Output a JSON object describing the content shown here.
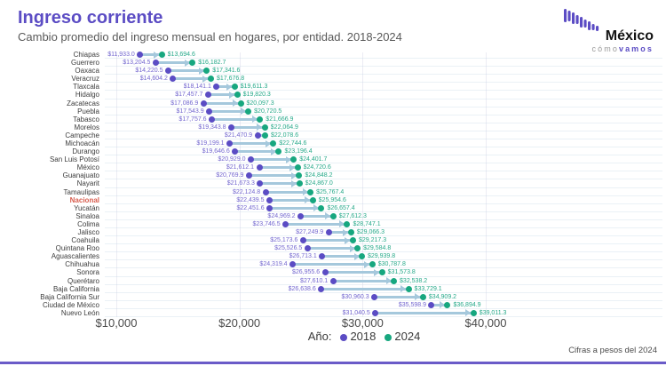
{
  "header": {
    "title": "Ingreso corriente",
    "subtitle": "Cambio promedio del ingreso mensual en hogares, por entidad. 2018-2024"
  },
  "logo": {
    "name": "México",
    "sub1": "cómo",
    "sub2": "vamos",
    "icon": "bars-logo-icon"
  },
  "colors": {
    "purple_2018": "#5b4cc4",
    "green_2024": "#17a77f",
    "connector_line": "#a5c8dc",
    "national_red": "#d85c4d",
    "title_purple": "#5b4cc4"
  },
  "legend": {
    "label": "Año:",
    "items": [
      {
        "label": "2018",
        "color": "#5b4cc4"
      },
      {
        "label": "2024",
        "color": "#17a77f"
      }
    ]
  },
  "footer": {
    "note": "Cifras a pesos del 2024"
  },
  "chart_data": {
    "type": "scatter",
    "variant": "dumbbell",
    "title": "Ingreso corriente",
    "subtitle": "Cambio promedio del ingreso mensual en hogares, por entidad. 2018-2024",
    "xlabel": "",
    "ylabel": "",
    "unit": "MXN pesos del 2024",
    "legend_position": "bottom",
    "highlight_category": "Nacional",
    "x_ticks": [
      10000,
      20000,
      30000,
      40000
    ],
    "x_tick_labels": [
      "$10,000",
      "$20,000",
      "$30,000",
      "$40,000"
    ],
    "xlim": [
      8500,
      43500
    ],
    "categories": [
      "Chiapas",
      "Guerrero",
      "Oaxaca",
      "Veracruz",
      "Tlaxcala",
      "Hidalgo",
      "Zacatecas",
      "Puebla",
      "Tabasco",
      "Morelos",
      "Campeche",
      "Michoacán",
      "Durango",
      "San Luis Potosí",
      "México",
      "Guanajuato",
      "Nayarit",
      "Tamaulipas",
      "Nacional",
      "Yucatán",
      "Sinaloa",
      "Colima",
      "Jalisco",
      "Coahuila",
      "Quintana Roo",
      "Aguascalientes",
      "Chihuahua",
      "Sonora",
      "Querétaro",
      "Baja California",
      "Baja California Sur",
      "Ciudad de México",
      "Nuevo León"
    ],
    "series": [
      {
        "name": "2018",
        "values": [
          11933.0,
          13204.5,
          14220.5,
          14604.2,
          18141.1,
          17457.7,
          17086.9,
          17543.9,
          17757.6,
          19343.8,
          21470.9,
          19199.1,
          19646.6,
          20929.0,
          21612.1,
          20769.9,
          21673.3,
          22124.8,
          22439.5,
          22451.6,
          24969.2,
          23746.5,
          27249.9,
          25173.6,
          25526.5,
          26713.1,
          24319.4,
          26955.6,
          27610.1,
          26638.6,
          30960.3,
          35598.9,
          31040.5
        ]
      },
      {
        "name": "2024",
        "values": [
          13694.6,
          16182.7,
          17341.6,
          17676.8,
          19611.3,
          19820.3,
          20097.3,
          20720.5,
          21666.9,
          22064.9,
          22078.6,
          22744.6,
          23196.4,
          24401.7,
          24720.6,
          24848.2,
          24867.0,
          25767.4,
          25954.6,
          26657.4,
          27612.3,
          28747.1,
          29066.3,
          29217.3,
          29584.8,
          29939.8,
          30787.8,
          31573.8,
          32538.2,
          33729.1,
          34909.2,
          36894.9,
          39011.3
        ]
      }
    ]
  }
}
